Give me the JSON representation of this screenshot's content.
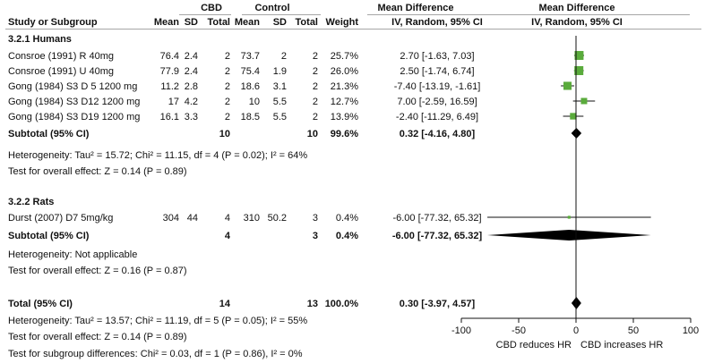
{
  "chart_data": {
    "type": "forest",
    "headers": {
      "group_cbd": "CBD",
      "group_control": "Control",
      "mean_difference": "Mean Difference",
      "study": "Study or Subgroup",
      "mean": "Mean",
      "sd": "SD",
      "total": "Total",
      "weight": "Weight",
      "method": "IV, Random, 95% CI"
    },
    "subgroups": [
      {
        "label": "3.2.1 Humans",
        "studies": [
          {
            "study": "Consroe (1991) R 40mg",
            "cbd_mean": "76.4",
            "cbd_sd": "2.4",
            "cbd_total": "2",
            "ctrl_mean": "73.7",
            "ctrl_sd": "2",
            "ctrl_total": "2",
            "weight": "25.7%",
            "ci_text": "2.70 [-1.63, 7.03]",
            "md": 2.7,
            "lo": -1.63,
            "hi": 7.03,
            "w": 25.7
          },
          {
            "study": "Consroe (1991) U 40mg",
            "cbd_mean": "77.9",
            "cbd_sd": "2.4",
            "cbd_total": "2",
            "ctrl_mean": "75.4",
            "ctrl_sd": "1.9",
            "ctrl_total": "2",
            "weight": "26.0%",
            "ci_text": "2.50 [-1.74, 6.74]",
            "md": 2.5,
            "lo": -1.74,
            "hi": 6.74,
            "w": 26.0
          },
          {
            "study": "Gong (1984) S3 D 5 1200 mg",
            "cbd_mean": "11.2",
            "cbd_sd": "2.8",
            "cbd_total": "2",
            "ctrl_mean": "18.6",
            "ctrl_sd": "3.1",
            "ctrl_total": "2",
            "weight": "21.3%",
            "ci_text": "-7.40 [-13.19, -1.61]",
            "md": -7.4,
            "lo": -13.19,
            "hi": -1.61,
            "w": 21.3
          },
          {
            "study": "Gong (1984) S3 D12 1200 mg",
            "cbd_mean": "17",
            "cbd_sd": "4.2",
            "cbd_total": "2",
            "ctrl_mean": "10",
            "ctrl_sd": "5.5",
            "ctrl_total": "2",
            "weight": "12.7%",
            "ci_text": "7.00 [-2.59, 16.59]",
            "md": 7.0,
            "lo": -2.59,
            "hi": 16.59,
            "w": 12.7
          },
          {
            "study": "Gong (1984) S3 D19 1200 mg",
            "cbd_mean": "16.1",
            "cbd_sd": "3.3",
            "cbd_total": "2",
            "ctrl_mean": "18.5",
            "ctrl_sd": "5.5",
            "ctrl_total": "2",
            "weight": "13.9%",
            "ci_text": "-2.40 [-11.29, 6.49]",
            "md": -2.4,
            "lo": -11.29,
            "hi": 6.49,
            "w": 13.9
          }
        ],
        "subtotal": {
          "label": "Subtotal (95% CI)",
          "cbd_total": "10",
          "ctrl_total": "10",
          "weight": "99.6%",
          "ci_text": "0.32 [-4.16, 4.80]",
          "md": 0.32,
          "lo": -4.16,
          "hi": 4.8
        },
        "heterogeneity": "Heterogeneity: Tau² = 15.72; Chi² = 11.15, df = 4 (P = 0.02); I² = 64%",
        "overall_effect": "Test for overall effect: Z = 0.14 (P = 0.89)"
      },
      {
        "label": "3.2.2 Rats",
        "studies": [
          {
            "study": "Durst (2007) D7 5mg/kg",
            "cbd_mean": "304",
            "cbd_sd": "44",
            "cbd_total": "4",
            "ctrl_mean": "310",
            "ctrl_sd": "50.2",
            "ctrl_total": "3",
            "weight": "0.4%",
            "ci_text": "-6.00 [-77.32, 65.32]",
            "md": -6.0,
            "lo": -77.32,
            "hi": 65.32,
            "w": 0.4
          }
        ],
        "subtotal": {
          "label": "Subtotal (95% CI)",
          "cbd_total": "4",
          "ctrl_total": "3",
          "weight": "0.4%",
          "ci_text": "-6.00 [-77.32, 65.32]",
          "md": -6.0,
          "lo": -77.32,
          "hi": 65.32
        },
        "heterogeneity": "Heterogeneity: Not applicable",
        "overall_effect": "Test for overall effect: Z = 0.16 (P = 0.87)"
      }
    ],
    "total": {
      "label": "Total (95% CI)",
      "cbd_total": "14",
      "ctrl_total": "13",
      "weight": "100.0%",
      "ci_text": "0.30 [-3.97, 4.57]",
      "md": 0.3,
      "lo": -3.97,
      "hi": 4.57
    },
    "total_heterogeneity": "Heterogeneity: Tau² = 13.57; Chi² = 11.19, df = 5 (P = 0.05); I² = 55%",
    "total_overall_effect": "Test for overall effect: Z = 0.14 (P = 0.89)",
    "subgroup_differences": "Test for subgroup differences: Chi² = 0.03, df = 1 (P = 0.86), I² = 0%",
    "xaxis": {
      "ticks": [
        -100,
        -50,
        0,
        50,
        100
      ],
      "tick_labels": [
        "-100",
        "-50",
        "0",
        "50",
        "100"
      ],
      "xlim": [
        -100,
        100
      ],
      "left_label": "CBD reduces HR",
      "right_label": "CBD increases HR"
    },
    "colors": {
      "square": "#5aab3c",
      "line": "#111111",
      "diamond": "#000000"
    }
  }
}
